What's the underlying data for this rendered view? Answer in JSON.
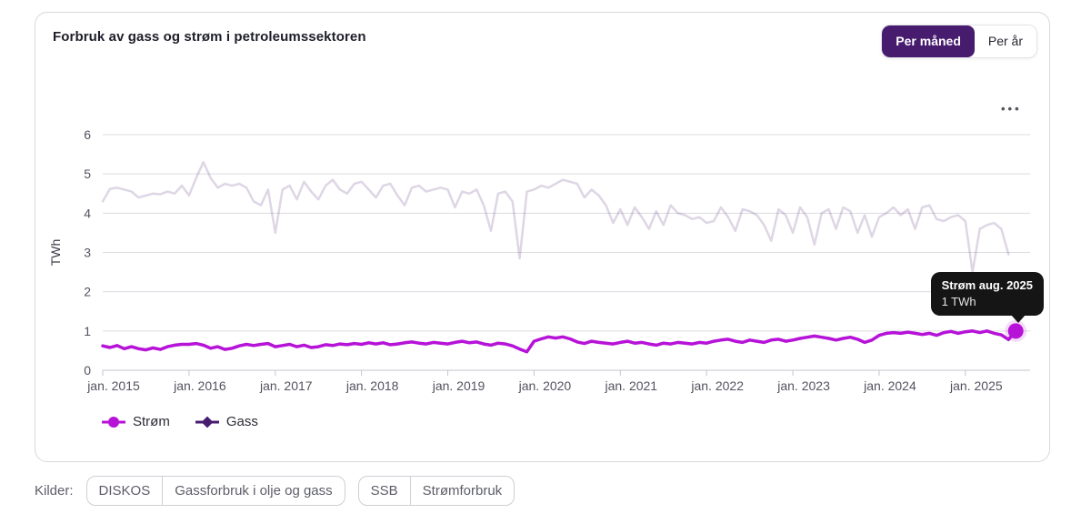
{
  "card": {
    "title": "Forbruk av gass og strøm i petroleumssektoren",
    "toggle": {
      "monthly_label": "Per måned",
      "yearly_label": "Per år",
      "active": "monthly"
    },
    "menu_icon_glyph": "●●●"
  },
  "chart_data": {
    "type": "line",
    "title": "Forbruk av gass og strøm i petroleumssektoren",
    "xlabel": "",
    "ylabel": "TWh",
    "ylim": [
      0,
      6
    ],
    "y_ticks": [
      0,
      1,
      2,
      3,
      4,
      5,
      6
    ],
    "grid": true,
    "x_tick_labels": [
      "jan. 2015",
      "jan. 2016",
      "jan. 2017",
      "jan. 2018",
      "jan. 2019",
      "jan. 2020",
      "jan. 2021",
      "jan. 2022",
      "jan. 2023",
      "jan. 2024",
      "jan. 2025"
    ],
    "x_months_per_tick": 12,
    "x_axis_total_months": 130,
    "series": [
      {
        "name": "Strøm",
        "color": "#b612d8",
        "marker": "circle",
        "faded": false,
        "values": [
          0.62,
          0.58,
          0.63,
          0.55,
          0.6,
          0.55,
          0.52,
          0.57,
          0.53,
          0.6,
          0.64,
          0.66,
          0.66,
          0.68,
          0.64,
          0.56,
          0.6,
          0.53,
          0.56,
          0.62,
          0.66,
          0.63,
          0.66,
          0.68,
          0.6,
          0.63,
          0.66,
          0.6,
          0.64,
          0.58,
          0.6,
          0.65,
          0.63,
          0.67,
          0.65,
          0.68,
          0.66,
          0.7,
          0.67,
          0.7,
          0.65,
          0.67,
          0.7,
          0.72,
          0.69,
          0.67,
          0.71,
          0.69,
          0.67,
          0.71,
          0.74,
          0.7,
          0.72,
          0.67,
          0.64,
          0.69,
          0.67,
          0.62,
          0.54,
          0.47,
          0.74,
          0.8,
          0.85,
          0.82,
          0.85,
          0.8,
          0.72,
          0.68,
          0.74,
          0.71,
          0.69,
          0.67,
          0.71,
          0.74,
          0.69,
          0.71,
          0.67,
          0.64,
          0.69,
          0.67,
          0.71,
          0.69,
          0.67,
          0.71,
          0.69,
          0.74,
          0.77,
          0.79,
          0.74,
          0.71,
          0.77,
          0.74,
          0.71,
          0.77,
          0.79,
          0.74,
          0.77,
          0.81,
          0.84,
          0.87,
          0.84,
          0.81,
          0.77,
          0.81,
          0.84,
          0.79,
          0.71,
          0.77,
          0.89,
          0.94,
          0.96,
          0.94,
          0.97,
          0.94,
          0.91,
          0.94,
          0.89,
          0.96,
          0.99,
          0.94,
          0.98,
          1.0,
          0.96,
          1.0,
          0.94,
          0.9,
          0.78,
          1.0
        ]
      },
      {
        "name": "Gass",
        "color": "#471b6e",
        "marker": "diamond",
        "faded": true,
        "values": [
          4.3,
          4.62,
          4.65,
          4.6,
          4.55,
          4.4,
          4.45,
          4.5,
          4.48,
          4.55,
          4.5,
          4.7,
          4.45,
          4.9,
          5.3,
          4.9,
          4.65,
          4.75,
          4.7,
          4.75,
          4.65,
          4.3,
          4.2,
          4.6,
          3.5,
          4.6,
          4.7,
          4.35,
          4.8,
          4.55,
          4.35,
          4.7,
          4.85,
          4.6,
          4.5,
          4.75,
          4.8,
          4.6,
          4.4,
          4.7,
          4.75,
          4.45,
          4.2,
          4.65,
          4.7,
          4.55,
          4.6,
          4.65,
          4.6,
          4.15,
          4.55,
          4.5,
          4.6,
          4.2,
          3.55,
          4.5,
          4.55,
          4.3,
          2.85,
          4.55,
          4.6,
          4.7,
          4.65,
          4.75,
          4.85,
          4.8,
          4.75,
          4.4,
          4.6,
          4.45,
          4.2,
          3.75,
          4.1,
          3.7,
          4.15,
          3.9,
          3.6,
          4.05,
          3.7,
          4.2,
          4.0,
          3.95,
          3.85,
          3.9,
          3.75,
          3.8,
          4.15,
          3.9,
          3.55,
          4.1,
          4.05,
          3.95,
          3.7,
          3.3,
          4.1,
          3.95,
          3.5,
          4.15,
          3.9,
          3.2,
          4.0,
          4.1,
          3.6,
          4.15,
          4.05,
          3.5,
          3.95,
          3.4,
          3.9,
          4.0,
          4.15,
          3.95,
          4.1,
          3.6,
          4.15,
          4.2,
          3.85,
          3.8,
          3.9,
          3.95,
          3.8,
          2.5,
          3.6,
          3.7,
          3.75,
          3.6,
          2.95
        ]
      }
    ],
    "hover_point": {
      "series_index": 0,
      "month_index": 127,
      "value": 1.0
    },
    "legend_position": "bottom-left",
    "tooltip": {
      "title": "Strøm aug. 2025",
      "value": "1 TWh"
    }
  },
  "sources": {
    "label": "Kilder:",
    "items": [
      {
        "org": "DISKOS",
        "dataset": "Gassforbruk i olje og gass"
      },
      {
        "org": "SSB",
        "dataset": "Strømforbruk"
      }
    ]
  },
  "colors": {
    "accent_active_toggle": "#471b6e",
    "strom_line": "#b612d8",
    "gass_line": "#471b6e",
    "gass_line_faded_opacity": "0.18",
    "tooltip_bg": "#151515",
    "grid_line": "#dcdce1",
    "axis_text": "#55525f",
    "card_border": "#d8d8de"
  }
}
